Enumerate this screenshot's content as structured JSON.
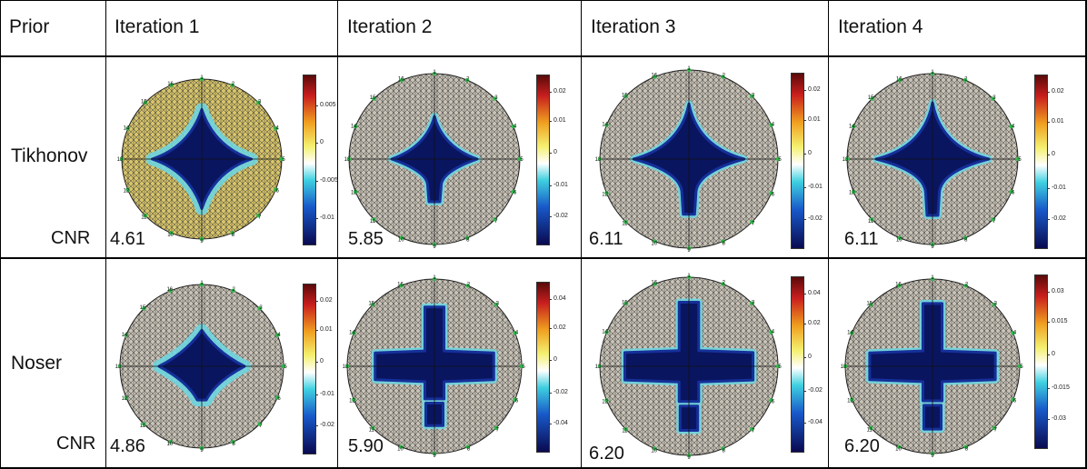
{
  "header": {
    "prior": "Prior",
    "iterations": [
      "Iteration 1",
      "Iteration 2",
      "Iteration 3",
      "Iteration 4"
    ]
  },
  "rows": [
    {
      "prior": "Tikhonov",
      "cnr_label": "CNR",
      "cnr": [
        "4.61",
        "5.85",
        "6.11",
        "6.11"
      ],
      "colorbar_ticks": [
        [
          "0.005",
          "0",
          "-0.005",
          "-0.01"
        ],
        [
          "0.02",
          "0.01",
          "0",
          "-0.01",
          "-0.02"
        ],
        [
          "0.02",
          "0.01",
          "0",
          "-0.01",
          "-0.02"
        ],
        [
          "0.02",
          "0.01",
          "0",
          "-0.01",
          "-0.02"
        ]
      ]
    },
    {
      "prior": "Noser",
      "cnr_label": "CNR",
      "cnr": [
        "4.86",
        "5.90",
        "6.20",
        "6.20"
      ],
      "colorbar_ticks": [
        [
          "0.02",
          "0.01",
          "0",
          "-0.01",
          "-0.02"
        ],
        [
          "0.04",
          "0.02",
          "0",
          "-0.02",
          "-0.04"
        ],
        [
          "0.04",
          "0.02",
          "0",
          "-0.02",
          "-0.04"
        ],
        [
          "0.03",
          "0.015",
          "0",
          "-0.015",
          "-0.03"
        ]
      ]
    }
  ],
  "electrode_labels": [
    "1",
    "2",
    "3",
    "4",
    "5",
    "6",
    "7",
    "8",
    "9",
    "10",
    "11",
    "12",
    "13",
    "14",
    "15",
    "16"
  ],
  "colors": {
    "grid_line": "#000000",
    "mesh_gray": "#c8c2b6",
    "blob_dark": "#0a1560",
    "electrode": "#2db84a"
  }
}
